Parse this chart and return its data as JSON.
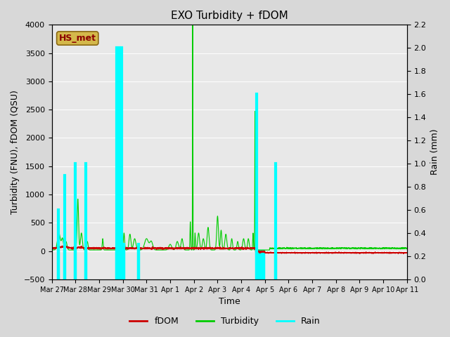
{
  "title": "EXO Turbidity + fDOM",
  "xlabel": "Time",
  "ylabel_left": "Turbidity (FNU), fDOM (QSU)",
  "ylabel_right": "Rain (mm)",
  "ylim_left": [
    -500,
    4000
  ],
  "ylim_right": [
    0.0,
    2.2
  ],
  "xlim": [
    0,
    15
  ],
  "annotation_text": "HS_met",
  "annotation_box_color": "#d4b84a",
  "annotation_text_color": "#8b0000",
  "background_color": "#d8d8d8",
  "plot_bg_color": "#e8e8e8",
  "x_tick_labels": [
    "Mar 27",
    "Mar 28",
    "Mar 29",
    "Mar 30",
    "Mar 31",
    "Apr 1",
    "Apr 2",
    "Apr 3",
    "Apr 4",
    "Apr 5",
    "Apr 6",
    "Apr 7",
    "Apr 8",
    "Apr 9",
    "Apr 10",
    "Apr 11"
  ],
  "x_tick_positions": [
    0,
    1,
    2,
    3,
    4,
    5,
    6,
    7,
    8,
    9,
    10,
    11,
    12,
    13,
    14,
    15
  ],
  "yticks_left": [
    -500,
    0,
    500,
    1000,
    1500,
    2000,
    2500,
    3000,
    3500,
    4000
  ],
  "yticks_right": [
    0.0,
    0.2,
    0.4,
    0.6,
    0.8,
    1.0,
    1.2,
    1.4,
    1.6,
    1.8,
    2.0,
    2.2
  ],
  "fdom_color": "#cc0000",
  "turbidity_color": "#00cc00",
  "rain_color": "#00ffff",
  "legend_entries": [
    "fDOM",
    "Turbidity",
    "Rain"
  ],
  "rain_events": {
    "t": [
      0.27,
      0.55,
      1.0,
      1.45,
      2.75,
      2.85,
      2.95,
      3.05,
      3.65,
      8.65,
      8.72,
      8.78,
      8.85,
      8.95,
      9.45
    ],
    "h": [
      0.6,
      0.9,
      1.0,
      1.0,
      2.0,
      2.0,
      2.0,
      0.3,
      0.3,
      1.6,
      0.2,
      0.2,
      0.2,
      0.2,
      1.0
    ]
  }
}
